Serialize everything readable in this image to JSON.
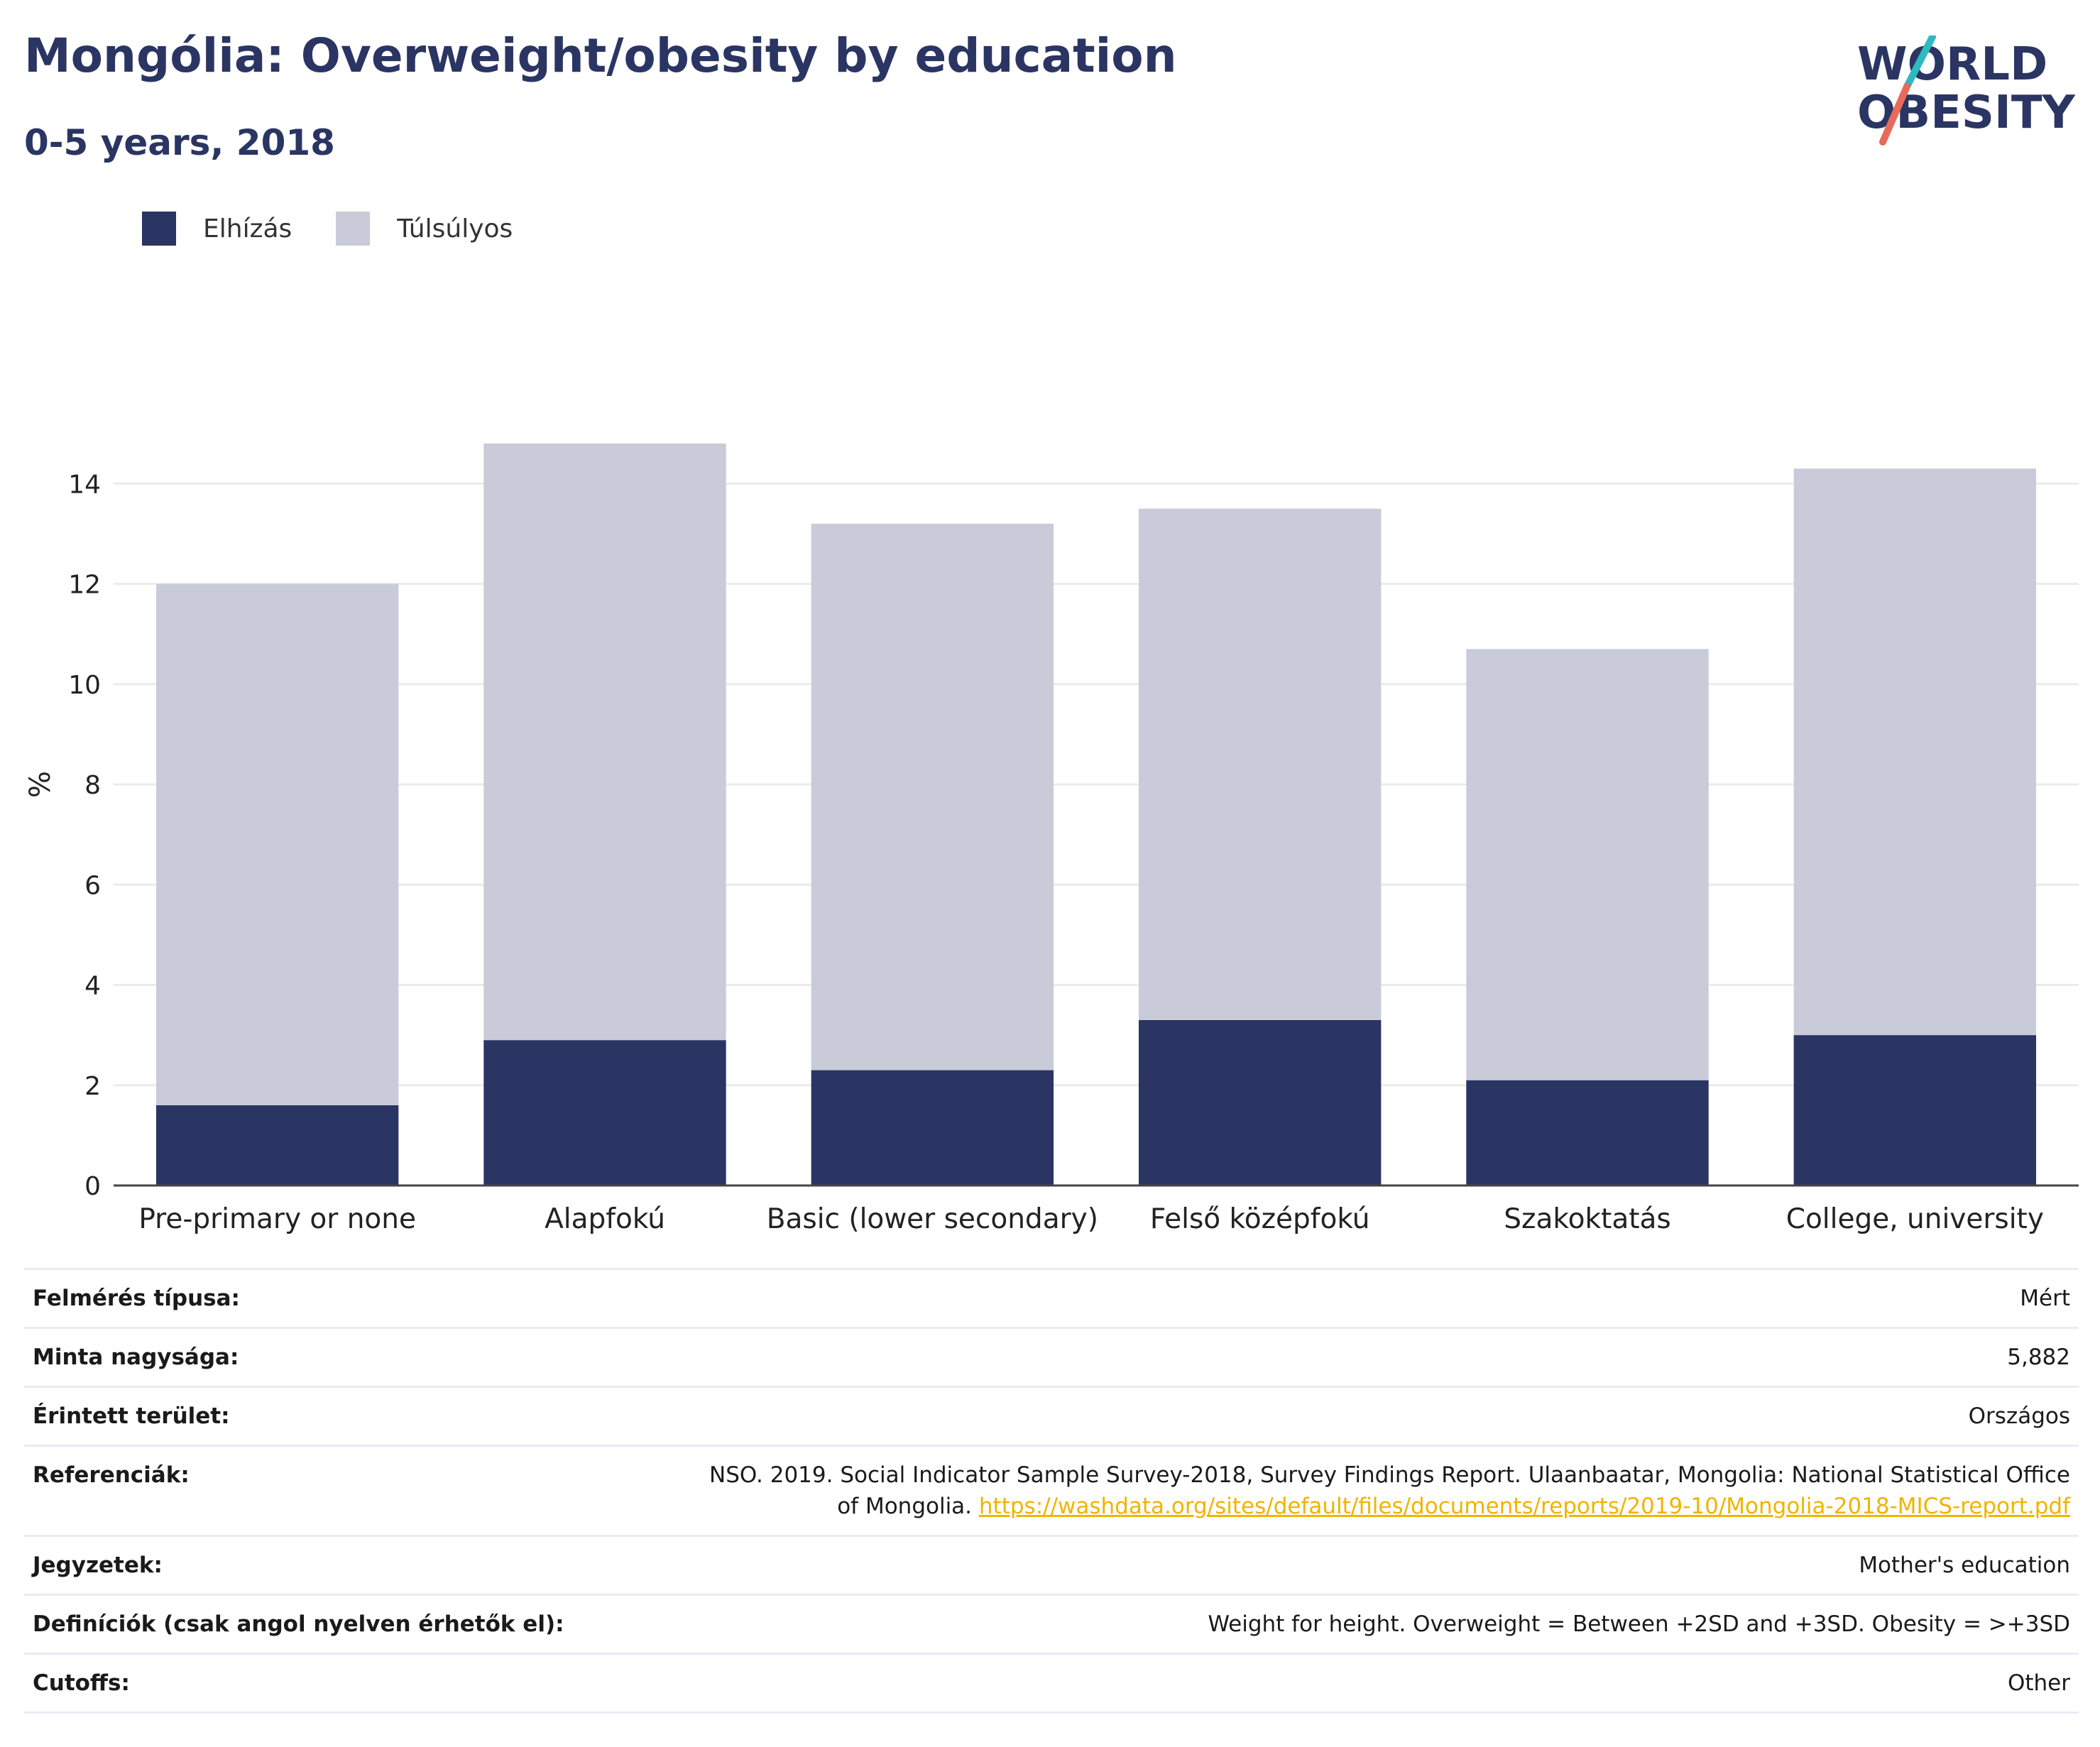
{
  "header": {
    "title": "Mongólia: Overweight/obesity by education",
    "subtitle": "0-5 years, 2018"
  },
  "logo": {
    "line1": "WORLD",
    "line2": "OBESITY"
  },
  "legend": [
    {
      "label": "Elhízás",
      "color": "#2a3563"
    },
    {
      "label": "Túlsúlyos",
      "color": "#c9ccd8"
    }
  ],
  "chart_data": {
    "type": "bar",
    "stacked": true,
    "categories": [
      "Pre-primary or none",
      "Alapfokú",
      "Basic (lower secondary)",
      "Felső középfokú",
      "Szakoktatás",
      "College, university"
    ],
    "series": [
      {
        "name": "Elhízás",
        "color": "#2a3563",
        "values": [
          1.6,
          2.9,
          2.3,
          3.3,
          2.1,
          3.0
        ]
      },
      {
        "name": "Túlsúlyos",
        "color": "#c9ccd8",
        "values": [
          10.4,
          11.9,
          10.9,
          10.2,
          8.6,
          11.3
        ]
      }
    ],
    "ylabel": "%",
    "ylim": [
      0,
      16
    ],
    "yticks": [
      0,
      2,
      4,
      6,
      8,
      10,
      12,
      14
    ],
    "grid": true,
    "legend_position": "top-left"
  },
  "meta": [
    {
      "key": "Felmérés típusa:",
      "value": "Mért"
    },
    {
      "key": "Minta nagysága:",
      "value": "5,882"
    },
    {
      "key": "Érintett terület:",
      "value": "Országos"
    },
    {
      "key": "Referenciák:",
      "value": "NSO. 2019. Social Indicator Sample Survey-2018, Survey Findings Report. Ulaanbaatar, Mongolia: National Statistical Office of Mongolia.",
      "link": "https://washdata.org/sites/default/files/documents/reports/2019-10/Mongolia-2018-MICS-report.pdf"
    },
    {
      "key": "Jegyzetek:",
      "value": "Mother's education"
    },
    {
      "key": "Definíciók (csak angol nyelven érhetők el):",
      "value": "Weight for height. Overweight = Between +2SD and +3SD. Obesity = >+3SD"
    },
    {
      "key": "Cutoffs:",
      "value": "Other"
    }
  ]
}
